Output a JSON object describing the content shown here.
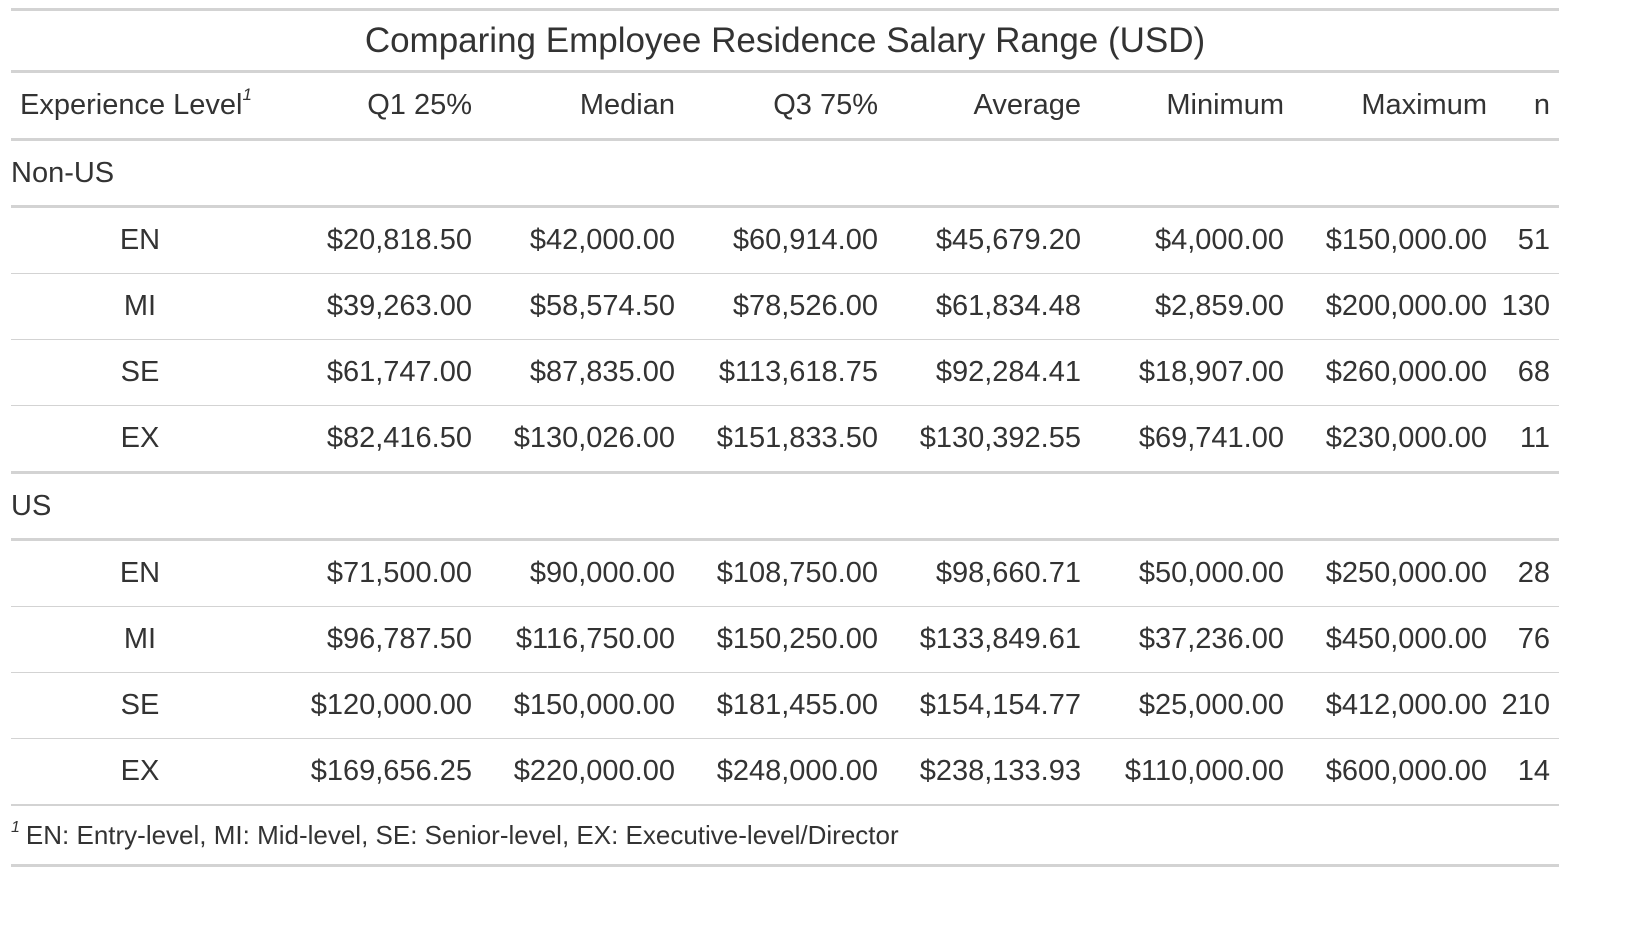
{
  "table": {
    "title": "Comparing Employee Residence Salary Range (USD)",
    "columns": [
      "Experience Level",
      "Q1 25%",
      "Median",
      "Q3 75%",
      "Average",
      "Minimum",
      "Maximum",
      "n"
    ],
    "footnote_mark": "1",
    "groups": [
      {
        "label": "Non-US",
        "rows": [
          [
            "EN",
            "$20,818.50",
            "$42,000.00",
            "$60,914.00",
            "$45,679.20",
            "$4,000.00",
            "$150,000.00",
            "51"
          ],
          [
            "MI",
            "$39,263.00",
            "$58,574.50",
            "$78,526.00",
            "$61,834.48",
            "$2,859.00",
            "$200,000.00",
            "130"
          ],
          [
            "SE",
            "$61,747.00",
            "$87,835.00",
            "$113,618.75",
            "$92,284.41",
            "$18,907.00",
            "$260,000.00",
            "68"
          ],
          [
            "EX",
            "$82,416.50",
            "$130,026.00",
            "$151,833.50",
            "$130,392.55",
            "$69,741.00",
            "$230,000.00",
            "11"
          ]
        ]
      },
      {
        "label": "US",
        "rows": [
          [
            "EN",
            "$71,500.00",
            "$90,000.00",
            "$108,750.00",
            "$98,660.71",
            "$50,000.00",
            "$250,000.00",
            "28"
          ],
          [
            "MI",
            "$96,787.50",
            "$116,750.00",
            "$150,250.00",
            "$133,849.61",
            "$37,236.00",
            "$450,000.00",
            "76"
          ],
          [
            "SE",
            "$120,000.00",
            "$150,000.00",
            "$181,455.00",
            "$154,154.77",
            "$25,000.00",
            "$412,000.00",
            "210"
          ],
          [
            "EX",
            "$169,656.25",
            "$220,000.00",
            "$248,000.00",
            "$238,133.93",
            "$110,000.00",
            "$600,000.00",
            "14"
          ]
        ]
      }
    ],
    "footnote": "EN: Entry-level, MI: Mid-level, SE: Senior-level, EX: Executive-level/Director"
  }
}
